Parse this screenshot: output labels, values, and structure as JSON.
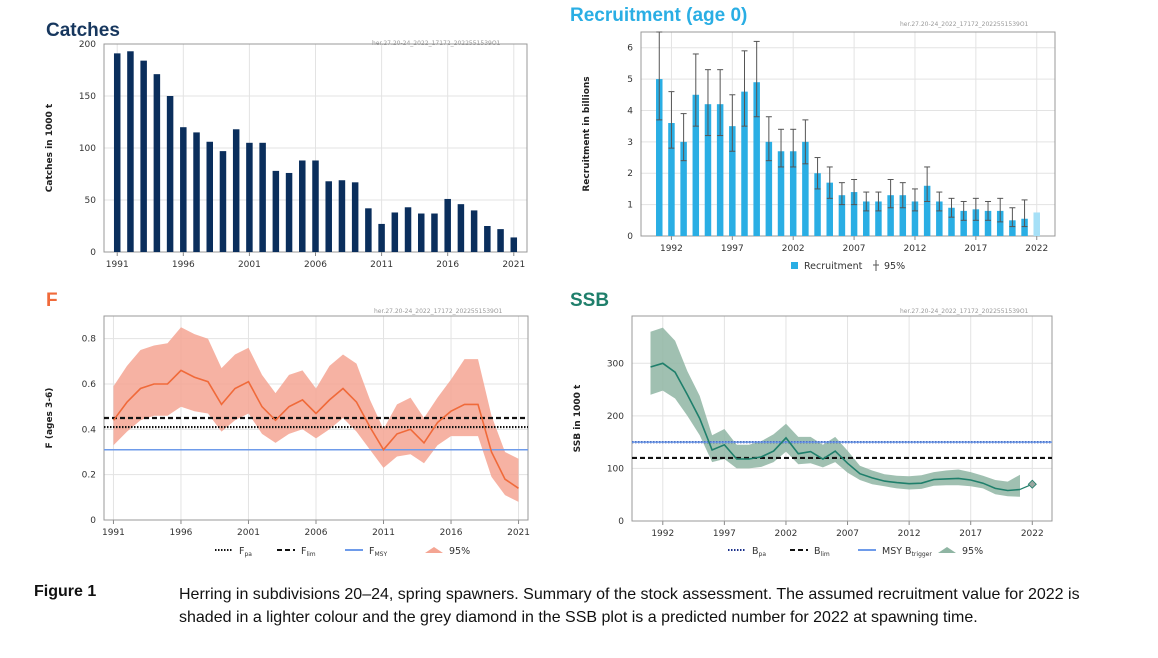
{
  "figure": {
    "label": "Figure 1",
    "caption": "Herring in subdivisions 20–24, spring spawners. Summary of the stock assessment. The assumed recruitment value for 2022 is shaded in a lighter colour and the grey diamond in the SSB plot is a predicted number for 2022 at spawning time."
  },
  "source_id": "her.27.20-24_2022_17172_2022551539O1",
  "chart_data": [
    {
      "id": "catches",
      "type": "bar",
      "title": "Catches",
      "title_color": "#17375e",
      "ylabel": "Catches in 1000 t",
      "xlabel": "",
      "ylim": [
        0,
        200
      ],
      "yticks": [
        0,
        50,
        100,
        150,
        200
      ],
      "xticks": [
        1991,
        1996,
        2001,
        2006,
        2011,
        2016,
        2021
      ],
      "grid": true,
      "bar_color": "#0a2e5c",
      "x": [
        1991,
        1992,
        1993,
        1994,
        1995,
        1996,
        1997,
        1998,
        1999,
        2000,
        2001,
        2002,
        2003,
        2004,
        2005,
        2006,
        2007,
        2008,
        2009,
        2010,
        2011,
        2012,
        2013,
        2014,
        2015,
        2016,
        2017,
        2018,
        2019,
        2020,
        2021
      ],
      "values": [
        191,
        193,
        184,
        171,
        150,
        120,
        115,
        106,
        97,
        118,
        105,
        105,
        78,
        76,
        88,
        88,
        68,
        69,
        67,
        42,
        27,
        38,
        43,
        37,
        37,
        51,
        46,
        40,
        25,
        22,
        14
      ]
    },
    {
      "id": "recruitment",
      "type": "bar",
      "title": "Recruitment (age 0)",
      "title_color": "#2aaee4",
      "ylabel": "Recruitment in billions",
      "xlabel": "",
      "ylim": [
        0,
        6.5
      ],
      "yticks": [
        0,
        1,
        2,
        3,
        4,
        5,
        6
      ],
      "xticks": [
        1992,
        1997,
        2002,
        2007,
        2012,
        2017,
        2022
      ],
      "grid": true,
      "bar_color": "#2aaee4",
      "assumed_color": "#a6e0f7",
      "legend": [
        "Recruitment",
        "95%"
      ],
      "legend_position": "bottom",
      "x": [
        1991,
        1992,
        1993,
        1994,
        1995,
        1996,
        1997,
        1998,
        1999,
        2000,
        2001,
        2002,
        2003,
        2004,
        2005,
        2006,
        2007,
        2008,
        2009,
        2010,
        2011,
        2012,
        2013,
        2014,
        2015,
        2016,
        2017,
        2018,
        2019,
        2020,
        2021,
        2022
      ],
      "values": [
        5.0,
        3.6,
        3.0,
        4.5,
        4.2,
        4.2,
        3.5,
        4.6,
        4.9,
        3.0,
        2.7,
        2.7,
        3.0,
        2.0,
        1.7,
        1.3,
        1.4,
        1.1,
        1.1,
        1.3,
        1.3,
        1.1,
        1.6,
        1.1,
        0.9,
        0.8,
        0.85,
        0.8,
        0.8,
        0.5,
        0.55,
        0.75
      ],
      "upper": [
        6.5,
        4.6,
        3.9,
        5.8,
        5.3,
        5.3,
        4.5,
        5.9,
        6.2,
        3.8,
        3.4,
        3.4,
        3.7,
        2.5,
        2.2,
        1.7,
        1.8,
        1.4,
        1.4,
        1.8,
        1.7,
        1.5,
        2.2,
        1.4,
        1.2,
        1.1,
        1.2,
        1.1,
        1.2,
        0.9,
        1.15,
        null
      ],
      "lower": [
        3.7,
        2.8,
        2.4,
        3.5,
        3.2,
        3.2,
        2.7,
        3.5,
        3.8,
        2.4,
        2.2,
        2.2,
        2.3,
        1.5,
        1.2,
        1.0,
        1.0,
        0.8,
        0.8,
        0.9,
        0.9,
        0.8,
        1.1,
        0.8,
        0.6,
        0.5,
        0.5,
        0.5,
        0.45,
        0.3,
        0.3,
        null
      ]
    },
    {
      "id": "f",
      "type": "line",
      "title": "F",
      "title_color": "#f06a3a",
      "ylabel": "F (ages 3-6)",
      "xlabel": "",
      "ylim": [
        0,
        0.9
      ],
      "yticks": [
        0,
        0.2,
        0.4,
        0.6,
        0.8
      ],
      "xticks": [
        1991,
        1996,
        2001,
        2006,
        2011,
        2016,
        2021
      ],
      "grid": true,
      "line_color": "#f06a3a",
      "band_color": "#f4a593",
      "x": [
        1991,
        1992,
        1993,
        1994,
        1995,
        1996,
        1997,
        1998,
        1999,
        2000,
        2001,
        2002,
        2003,
        2004,
        2005,
        2006,
        2007,
        2008,
        2009,
        2010,
        2011,
        2012,
        2013,
        2014,
        2015,
        2016,
        2017,
        2018,
        2019,
        2020,
        2021
      ],
      "values": [
        0.44,
        0.52,
        0.58,
        0.6,
        0.6,
        0.66,
        0.63,
        0.61,
        0.51,
        0.58,
        0.61,
        0.5,
        0.44,
        0.5,
        0.53,
        0.47,
        0.53,
        0.58,
        0.52,
        0.41,
        0.31,
        0.38,
        0.4,
        0.34,
        0.43,
        0.48,
        0.51,
        0.51,
        0.3,
        0.18,
        0.14
      ],
      "upper": [
        0.59,
        0.68,
        0.75,
        0.77,
        0.78,
        0.85,
        0.82,
        0.8,
        0.67,
        0.73,
        0.76,
        0.64,
        0.56,
        0.64,
        0.66,
        0.58,
        0.68,
        0.73,
        0.69,
        0.53,
        0.4,
        0.51,
        0.54,
        0.45,
        0.54,
        0.62,
        0.71,
        0.71,
        0.46,
        0.3,
        0.27
      ],
      "lower": [
        0.33,
        0.39,
        0.44,
        0.46,
        0.46,
        0.5,
        0.48,
        0.47,
        0.39,
        0.44,
        0.47,
        0.38,
        0.34,
        0.38,
        0.4,
        0.36,
        0.4,
        0.45,
        0.39,
        0.31,
        0.23,
        0.28,
        0.29,
        0.25,
        0.33,
        0.37,
        0.37,
        0.37,
        0.19,
        0.11,
        0.08
      ],
      "reference_lines": [
        {
          "name": "F",
          "sub": "pa",
          "value": 0.41,
          "style": "dotted",
          "color": "#111111"
        },
        {
          "name": "F",
          "sub": "lim",
          "value": 0.45,
          "style": "dashed",
          "color": "#111111"
        },
        {
          "name": "F",
          "sub": "MSY",
          "value": 0.31,
          "style": "solid",
          "color": "#6e9bea"
        }
      ],
      "legend": [
        {
          "name": "F",
          "sub": "pa"
        },
        {
          "name": "F",
          "sub": "lim"
        },
        {
          "name": "F",
          "sub": "MSY"
        },
        {
          "name": "95%",
          "sub": ""
        }
      ],
      "legend_position": "bottom"
    },
    {
      "id": "ssb",
      "type": "line",
      "title": "SSB",
      "title_color": "#1f7f6b",
      "ylabel": "SSB in 1000 t",
      "xlabel": "",
      "ylim": [
        0,
        390
      ],
      "yticks": [
        0,
        100,
        200,
        300
      ],
      "xticks": [
        1992,
        1997,
        2002,
        2007,
        2012,
        2017,
        2022
      ],
      "grid": true,
      "line_color": "#1f7f6b",
      "band_color": "#8fb5a3",
      "x": [
        1991,
        1992,
        1993,
        1994,
        1995,
        1996,
        1997,
        1998,
        1999,
        2000,
        2001,
        2002,
        2003,
        2004,
        2005,
        2006,
        2007,
        2008,
        2009,
        2010,
        2011,
        2012,
        2013,
        2014,
        2015,
        2016,
        2017,
        2018,
        2019,
        2020,
        2021
      ],
      "values": [
        293,
        300,
        283,
        240,
        195,
        135,
        145,
        118,
        118,
        122,
        133,
        158,
        128,
        132,
        118,
        133,
        110,
        90,
        82,
        76,
        73,
        71,
        72,
        79,
        80,
        81,
        78,
        72,
        62,
        58,
        60
      ],
      "upper": [
        360,
        368,
        343,
        285,
        238,
        163,
        175,
        145,
        145,
        152,
        165,
        185,
        160,
        160,
        145,
        160,
        134,
        105,
        96,
        89,
        86,
        85,
        87,
        93,
        96,
        98,
        93,
        86,
        78,
        75,
        88
      ],
      "lower": [
        240,
        248,
        233,
        200,
        163,
        112,
        118,
        100,
        100,
        103,
        112,
        132,
        108,
        110,
        102,
        112,
        92,
        78,
        70,
        66,
        62,
        60,
        61,
        67,
        68,
        68,
        66,
        62,
        51,
        47,
        46
      ],
      "predicted": {
        "x": 2022,
        "value": 70,
        "color": "#9aa6a0"
      },
      "reference_lines": [
        {
          "name": "B",
          "sub": "pa",
          "value": 150,
          "style": "dotted",
          "color": "#1a2f8a"
        },
        {
          "name": "B",
          "sub": "lim",
          "value": 120,
          "style": "dashed",
          "color": "#111111"
        },
        {
          "name": "MSY B",
          "sub": "trigger",
          "value": 150,
          "style": "solid",
          "color": "#6e9bea"
        }
      ],
      "legend": [
        {
          "name": "B",
          "sub": "pa"
        },
        {
          "name": "B",
          "sub": "lim"
        },
        {
          "name": "MSY B",
          "sub": "trigger"
        },
        {
          "name": "95%",
          "sub": ""
        }
      ],
      "legend_position": "bottom"
    }
  ]
}
